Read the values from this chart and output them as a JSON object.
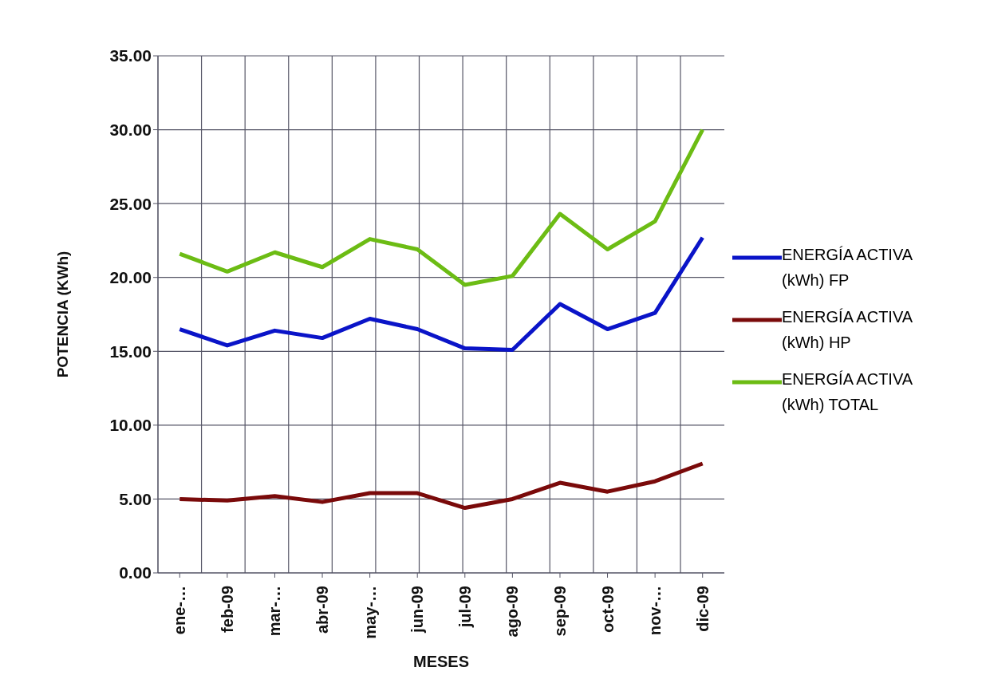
{
  "chart_data": {
    "type": "line",
    "xlabel": "MESES",
    "ylabel": "POTENCIA (KWh)",
    "categories": [
      "ene-…",
      "feb-09",
      "mar-…",
      "abr-09",
      "may-…",
      "jun-09",
      "jul-09",
      "ago-09",
      "sep-09",
      "oct-09",
      "nov-…",
      "dic-09"
    ],
    "series": [
      {
        "name": "ENERGÍA ACTIVA (kWh) FP",
        "color": "#0a14c8",
        "values": [
          16.5,
          15.4,
          16.4,
          15.9,
          17.2,
          16.5,
          15.2,
          15.1,
          18.2,
          16.5,
          17.6,
          22.7
        ]
      },
      {
        "name": "ENERGÍA ACTIVA (kWh) HP",
        "color": "#7a0a0a",
        "values": [
          5.0,
          4.9,
          5.2,
          4.8,
          5.4,
          5.4,
          4.4,
          5.0,
          6.1,
          5.5,
          6.2,
          7.4
        ]
      },
      {
        "name": "ENERGÍA ACTIVA (kWh) TOTAL",
        "color": "#6cbc14",
        "values": [
          21.6,
          20.4,
          21.7,
          20.7,
          22.6,
          21.9,
          19.5,
          20.1,
          24.3,
          21.9,
          23.8,
          30.0
        ]
      }
    ],
    "ylim": [
      0,
      35
    ],
    "yticks": [
      {
        "value": 0,
        "label": "0.00"
      },
      {
        "value": 5,
        "label": "5.00"
      },
      {
        "value": 10,
        "label": "10.00"
      },
      {
        "value": 15,
        "label": "15.00"
      },
      {
        "value": 20,
        "label": "20.00"
      },
      {
        "value": 25,
        "label": "25.00"
      },
      {
        "value": 30,
        "label": "30.00"
      },
      {
        "value": 35,
        "label": "35.00"
      }
    ],
    "grid": true,
    "legend": "right",
    "marker": "none",
    "line_style": "solid"
  }
}
